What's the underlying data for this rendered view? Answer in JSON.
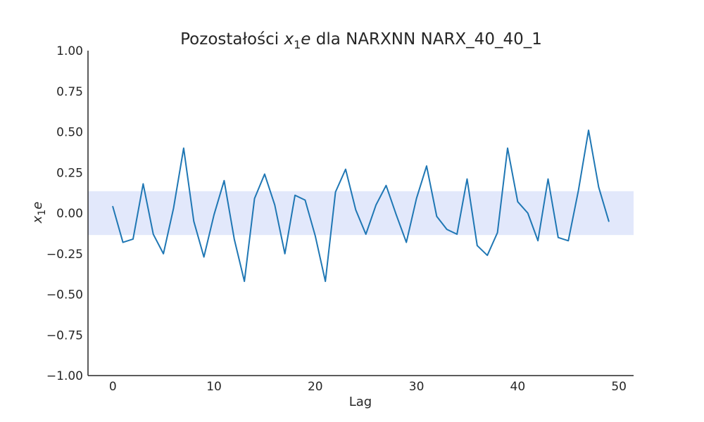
{
  "chart_data": {
    "type": "line",
    "title": {
      "prefix": "Pozostałości ",
      "var_main": "x",
      "var_sub": "1",
      "var_suffix": "e",
      "suffix": " dla NARXNN NARX_40_40_1"
    },
    "xlabel": "Lag",
    "ylabel": {
      "main": "x",
      "sub": "1",
      "suffix": "e"
    },
    "xlim": [
      -2.45,
      51.45
    ],
    "ylim": [
      -1.0,
      1.0
    ],
    "x_ticks": [
      0,
      10,
      20,
      30,
      40,
      50
    ],
    "x_tick_labels": [
      "0",
      "10",
      "20",
      "30",
      "40",
      "50"
    ],
    "y_ticks": [
      1.0,
      0.75,
      0.5,
      0.25,
      0.0,
      -0.25,
      -0.5,
      -0.75,
      -1.0
    ],
    "y_tick_labels": [
      "1.00",
      "0.75",
      "0.50",
      "0.25",
      "0.00",
      "−0.25",
      "−0.50",
      "−0.75",
      "−1.00"
    ],
    "confidence_band": [
      -0.135,
      0.135
    ],
    "band_color": "#e2e8fb",
    "line_color": "#1f77b4",
    "grid": false,
    "series": [
      {
        "x": [
          0,
          1,
          2,
          3,
          4,
          5,
          6,
          7,
          8,
          9,
          10,
          11,
          12,
          13,
          14,
          15,
          16,
          17,
          18,
          19,
          20,
          21,
          22,
          23,
          24,
          25,
          26,
          27,
          28,
          29,
          30,
          31,
          32,
          33,
          34,
          35,
          36,
          37,
          38,
          39,
          40,
          41,
          42,
          43,
          44,
          45,
          46,
          47,
          48,
          49
        ],
        "values": [
          0.04,
          -0.18,
          -0.16,
          0.18,
          -0.13,
          -0.25,
          0.03,
          0.4,
          -0.05,
          -0.27,
          -0.01,
          0.2,
          -0.16,
          -0.42,
          0.09,
          0.24,
          0.05,
          -0.25,
          0.11,
          0.08,
          -0.14,
          -0.42,
          0.13,
          0.27,
          0.02,
          -0.13,
          0.05,
          0.17,
          -0.01,
          -0.18,
          0.09,
          0.29,
          -0.02,
          -0.1,
          -0.13,
          0.21,
          -0.2,
          -0.26,
          -0.12,
          0.4,
          0.07,
          0.0,
          -0.17,
          0.21,
          -0.15,
          -0.17,
          0.14,
          0.51,
          0.16,
          -0.05
        ]
      }
    ]
  }
}
